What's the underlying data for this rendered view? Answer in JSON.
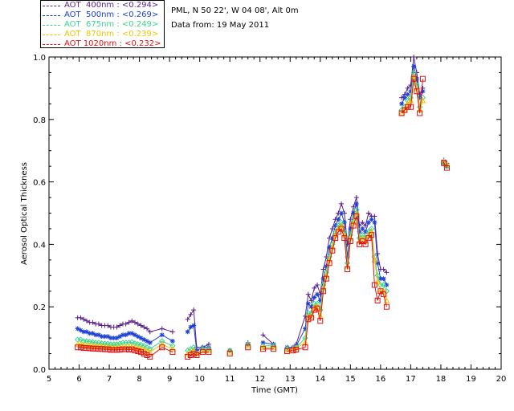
{
  "header": {
    "location": "PML, N 50 22', W 04 08', Alt 0m",
    "date_label": "Data from: 19 May 2011"
  },
  "legend": [
    {
      "label": "AOT  400nm : <0.294>",
      "color": "#5a1f8c"
    },
    {
      "label": "AOT  500nm : <0.269>",
      "color": "#1c3fd6"
    },
    {
      "label": "AOT  675nm : <0.249>",
      "color": "#3bd48f"
    },
    {
      "label": "AOT  870nm : <0.239>",
      "color": "#f2c200"
    },
    {
      "label": "AOT 1020nm : <0.232>",
      "color": "#e01010"
    }
  ],
  "chart_data": {
    "type": "scatter",
    "title": "",
    "xlabel": "Time (GMT)",
    "ylabel": "Aerosol Optical Thickness",
    "xlim": [
      5,
      20
    ],
    "ylim": [
      0,
      1.0
    ],
    "xticks": [
      "5",
      "6",
      "7",
      "8",
      "9",
      "10",
      "11",
      "12",
      "13",
      "14",
      "15",
      "16",
      "17",
      "18",
      "19",
      "20"
    ],
    "yticks": [
      "0.0",
      "0.2",
      "0.4",
      "0.6",
      "0.8",
      "1.0"
    ],
    "x": [
      5.95,
      6.05,
      6.15,
      6.25,
      6.35,
      6.45,
      6.55,
      6.65,
      6.75,
      6.85,
      6.95,
      7.05,
      7.15,
      7.25,
      7.35,
      7.45,
      7.55,
      7.65,
      7.75,
      7.85,
      7.95,
      8.05,
      8.15,
      8.25,
      8.35,
      8.75,
      9.1,
      9.6,
      9.7,
      9.8,
      9.9,
      10.1,
      10.3,
      11.0,
      11.6,
      12.1,
      12.45,
      12.9,
      13.1,
      13.2,
      13.5,
      13.6,
      13.7,
      13.8,
      13.9,
      14.0,
      14.1,
      14.2,
      14.3,
      14.4,
      14.5,
      14.6,
      14.7,
      14.8,
      14.9,
      15.0,
      15.1,
      15.2,
      15.3,
      15.4,
      15.5,
      15.6,
      15.7,
      15.8,
      15.9,
      16.0,
      16.1,
      16.2,
      16.7,
      16.8,
      16.9,
      17.0,
      17.1,
      17.2,
      17.3,
      17.4,
      18.1,
      18.2
    ],
    "series": [
      {
        "name": "AOT 400nm",
        "marker": "plus",
        "color": "#5a1f8c",
        "values": [
          0.165,
          0.165,
          0.16,
          0.155,
          0.15,
          0.15,
          0.145,
          0.145,
          0.14,
          0.14,
          0.14,
          0.135,
          0.135,
          0.135,
          0.14,
          0.145,
          0.145,
          0.15,
          0.155,
          0.15,
          0.145,
          0.14,
          0.135,
          0.13,
          0.12,
          0.13,
          0.12,
          0.16,
          0.175,
          0.19,
          0.07,
          0.07,
          0.08,
          0.06,
          0.085,
          0.11,
          0.08,
          0.07,
          0.07,
          0.08,
          0.17,
          0.24,
          0.22,
          0.26,
          0.27,
          0.24,
          0.32,
          0.36,
          0.42,
          0.45,
          0.48,
          0.5,
          0.53,
          0.5,
          0.4,
          0.48,
          0.52,
          0.55,
          0.46,
          0.47,
          0.46,
          0.5,
          0.49,
          0.49,
          0.37,
          0.32,
          0.32,
          0.31,
          0.87,
          0.88,
          0.9,
          0.91,
          1.0,
          0.95,
          0.88,
          0.9,
          0.67,
          0.66
        ]
      },
      {
        "name": "AOT 500nm",
        "marker": "star",
        "color": "#1c3fd6",
        "values": [
          0.13,
          0.125,
          0.12,
          0.12,
          0.115,
          0.115,
          0.11,
          0.11,
          0.105,
          0.105,
          0.105,
          0.1,
          0.1,
          0.1,
          0.105,
          0.11,
          0.11,
          0.115,
          0.115,
          0.11,
          0.105,
          0.1,
          0.095,
          0.09,
          0.085,
          0.11,
          0.09,
          0.12,
          0.135,
          0.14,
          0.06,
          0.07,
          0.07,
          0.06,
          0.08,
          0.085,
          0.08,
          0.07,
          0.07,
          0.075,
          0.13,
          0.21,
          0.2,
          0.23,
          0.24,
          0.22,
          0.29,
          0.33,
          0.39,
          0.42,
          0.46,
          0.48,
          0.5,
          0.47,
          0.36,
          0.45,
          0.5,
          0.53,
          0.44,
          0.45,
          0.44,
          0.47,
          0.48,
          0.47,
          0.34,
          0.29,
          0.29,
          0.27,
          0.85,
          0.87,
          0.88,
          0.89,
          0.97,
          0.93,
          0.87,
          0.89,
          0.66,
          0.65
        ]
      },
      {
        "name": "AOT 675nm",
        "marker": "diamond",
        "color": "#3bd48f",
        "values": [
          0.095,
          0.095,
          0.09,
          0.09,
          0.088,
          0.087,
          0.085,
          0.085,
          0.083,
          0.082,
          0.082,
          0.08,
          0.08,
          0.08,
          0.082,
          0.085,
          0.085,
          0.085,
          0.087,
          0.083,
          0.08,
          0.078,
          0.075,
          0.07,
          0.065,
          0.09,
          0.075,
          0.06,
          0.065,
          0.07,
          0.05,
          0.065,
          0.065,
          0.06,
          0.08,
          0.075,
          0.075,
          0.065,
          0.065,
          0.07,
          0.1,
          0.18,
          0.18,
          0.21,
          0.21,
          0.19,
          0.27,
          0.31,
          0.36,
          0.4,
          0.44,
          0.46,
          0.47,
          0.44,
          0.34,
          0.43,
          0.48,
          0.51,
          0.42,
          0.43,
          0.42,
          0.44,
          0.45,
          0.36,
          0.3,
          0.27,
          0.27,
          0.25,
          0.83,
          0.84,
          0.86,
          0.87,
          0.95,
          0.91,
          0.84,
          0.87,
          0.66,
          0.65
        ]
      },
      {
        "name": "AOT 870nm",
        "marker": "triangle",
        "color": "#f2c200",
        "values": [
          0.08,
          0.08,
          0.078,
          0.077,
          0.076,
          0.075,
          0.075,
          0.074,
          0.073,
          0.072,
          0.072,
          0.07,
          0.07,
          0.07,
          0.071,
          0.072,
          0.072,
          0.072,
          0.073,
          0.07,
          0.068,
          0.066,
          0.063,
          0.058,
          0.055,
          0.08,
          0.065,
          0.05,
          0.055,
          0.06,
          0.05,
          0.06,
          0.06,
          0.055,
          0.075,
          0.07,
          0.07,
          0.062,
          0.065,
          0.068,
          0.085,
          0.17,
          0.17,
          0.2,
          0.2,
          0.17,
          0.26,
          0.3,
          0.35,
          0.39,
          0.43,
          0.45,
          0.46,
          0.43,
          0.33,
          0.42,
          0.47,
          0.5,
          0.41,
          0.42,
          0.41,
          0.43,
          0.44,
          0.35,
          0.28,
          0.25,
          0.25,
          0.22,
          0.82,
          0.83,
          0.85,
          0.86,
          0.94,
          0.9,
          0.83,
          0.86,
          0.665,
          0.655
        ]
      },
      {
        "name": "AOT 1020nm",
        "marker": "square",
        "color": "#e01010",
        "values": [
          0.07,
          0.07,
          0.068,
          0.068,
          0.067,
          0.066,
          0.066,
          0.065,
          0.065,
          0.064,
          0.064,
          0.062,
          0.062,
          0.062,
          0.063,
          0.064,
          0.064,
          0.063,
          0.064,
          0.06,
          0.058,
          0.055,
          0.05,
          0.045,
          0.04,
          0.07,
          0.055,
          0.04,
          0.045,
          0.05,
          0.045,
          0.055,
          0.055,
          0.05,
          0.07,
          0.065,
          0.065,
          0.058,
          0.06,
          0.063,
          0.07,
          0.16,
          0.165,
          0.19,
          0.195,
          0.155,
          0.25,
          0.29,
          0.34,
          0.38,
          0.42,
          0.44,
          0.45,
          0.42,
          0.32,
          0.41,
          0.46,
          0.49,
          0.4,
          0.41,
          0.4,
          0.42,
          0.43,
          0.27,
          0.22,
          0.25,
          0.24,
          0.2,
          0.82,
          0.83,
          0.84,
          0.84,
          0.93,
          0.89,
          0.82,
          0.93,
          0.66,
          0.645
        ]
      }
    ]
  }
}
